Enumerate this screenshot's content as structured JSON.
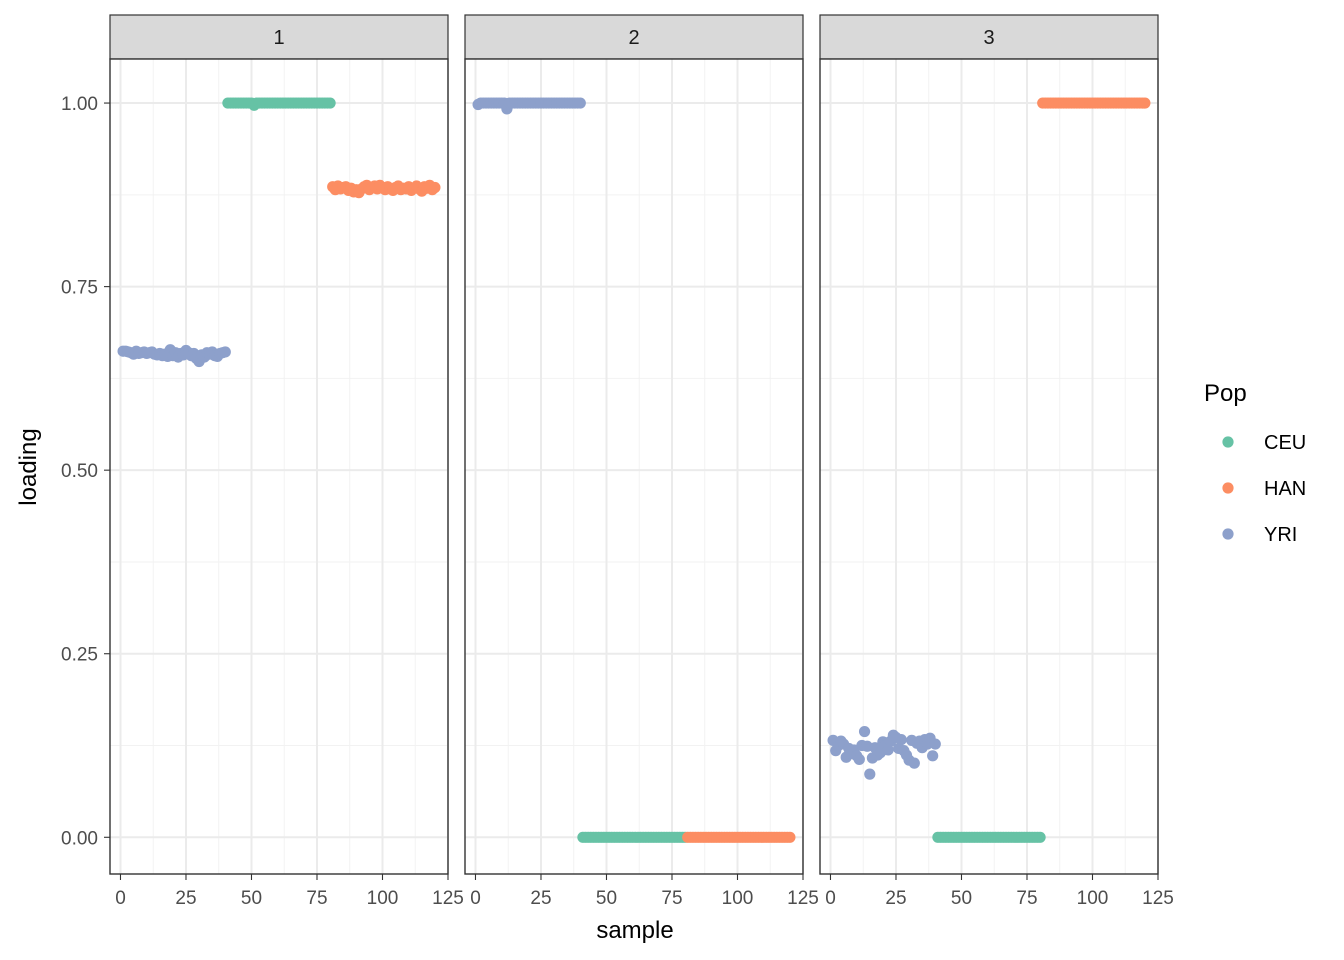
{
  "chart_data": {
    "type": "scatter",
    "xlabel": "sample",
    "ylabel": "loading",
    "xlim": [
      -4,
      125
    ],
    "ylim": [
      -0.05,
      1.06
    ],
    "x_ticks": [
      0,
      25,
      50,
      75,
      100,
      125
    ],
    "x_tick_labels": [
      "0",
      "25",
      "50",
      "75",
      "100",
      "125"
    ],
    "y_ticks": [
      0,
      0.25,
      0.5,
      0.75,
      1
    ],
    "y_tick_labels": [
      "0.00",
      "0.25",
      "0.50",
      "0.75",
      "1.00"
    ],
    "grid": true,
    "legend": {
      "title": "Pop",
      "position": "right",
      "entries": [
        {
          "label": "CEU",
          "color": "#66C2A5"
        },
        {
          "label": "HAN",
          "color": "#FC8D62"
        },
        {
          "label": "YRI",
          "color": "#8DA0CB"
        }
      ]
    },
    "panels": [
      {
        "label": "1",
        "series": [
          {
            "name": "YRI",
            "x_range": [
              1,
              40
            ],
            "values": [
              0.662,
              0.662,
              0.661,
              0.66,
              0.658,
              0.662,
              0.659,
              0.66,
              0.661,
              0.659,
              0.66,
              0.661,
              0.658,
              0.657,
              0.659,
              0.656,
              0.658,
              0.655,
              0.664,
              0.656,
              0.66,
              0.654,
              0.659,
              0.657,
              0.663,
              0.66,
              0.656,
              0.659,
              0.652,
              0.648,
              0.657,
              0.654,
              0.66,
              0.658,
              0.661,
              0.656,
              0.655,
              0.659,
              0.66,
              0.661
            ]
          },
          {
            "name": "CEU",
            "x_range": [
              41,
              80
            ],
            "values": [
              1.0,
              1.0,
              1.0,
              1.0,
              1.0,
              1.0,
              1.0,
              1.0,
              1.0,
              1.0,
              0.997,
              1.0,
              1.0,
              1.0,
              1.0,
              1.0,
              1.0,
              1.0,
              1.0,
              1.0,
              1.0,
              1.0,
              1.0,
              1.0,
              1.0,
              1.0,
              1.0,
              1.0,
              1.0,
              1.0,
              1.0,
              1.0,
              1.0,
              1.0,
              1.0,
              1.0,
              1.0,
              1.0,
              1.0,
              1.0
            ]
          },
          {
            "name": "HAN",
            "x_range": [
              81,
              120
            ],
            "values": [
              0.886,
              0.882,
              0.887,
              0.883,
              0.885,
              0.886,
              0.881,
              0.884,
              0.879,
              0.882,
              0.878,
              0.883,
              0.886,
              0.888,
              0.882,
              0.885,
              0.887,
              0.883,
              0.888,
              0.884,
              0.882,
              0.886,
              0.883,
              0.881,
              0.885,
              0.887,
              0.882,
              0.884,
              0.883,
              0.886,
              0.881,
              0.884,
              0.887,
              0.883,
              0.88,
              0.886,
              0.884,
              0.888,
              0.882,
              0.885
            ]
          }
        ]
      },
      {
        "label": "2",
        "series": [
          {
            "name": "YRI",
            "x_range": [
              1,
              40
            ],
            "values": [
              0.998,
              1.0,
              1.0,
              1.0,
              1.0,
              1.0,
              1.0,
              1.0,
              1.0,
              1.0,
              1.0,
              0.992,
              1.0,
              1.0,
              1.0,
              1.0,
              1.0,
              1.0,
              1.0,
              1.0,
              1.0,
              1.0,
              1.0,
              1.0,
              1.0,
              1.0,
              1.0,
              1.0,
              1.0,
              1.0,
              1.0,
              1.0,
              1.0,
              1.0,
              1.0,
              1.0,
              1.0,
              1.0,
              1.0,
              1.0
            ]
          },
          {
            "name": "CEU",
            "x_range": [
              41,
              80
            ],
            "values": [
              0,
              0,
              0,
              0,
              0,
              0,
              0,
              0,
              0,
              0,
              0,
              0,
              0,
              0,
              0,
              0,
              0,
              0,
              0,
              0,
              0,
              0,
              0,
              0,
              0,
              0,
              0,
              0,
              0,
              0,
              0,
              0,
              0,
              0,
              0,
              0,
              0,
              0,
              0,
              0
            ]
          },
          {
            "name": "HAN",
            "x_range": [
              81,
              120
            ],
            "values": [
              0,
              0,
              0,
              0,
              0,
              0,
              0,
              0,
              0,
              0,
              0,
              0,
              0,
              0,
              0,
              0,
              0,
              0,
              0,
              0,
              0,
              0,
              0,
              0,
              0,
              0,
              0,
              0,
              0,
              0,
              0,
              0,
              0,
              0,
              0,
              0,
              0,
              0,
              0,
              0
            ]
          }
        ]
      },
      {
        "label": "3",
        "series": [
          {
            "name": "YRI",
            "x_range": [
              1,
              40
            ],
            "values": [
              0.132,
              0.118,
              0.125,
              0.131,
              0.127,
              0.109,
              0.121,
              0.114,
              0.119,
              0.111,
              0.106,
              0.125,
              0.144,
              0.124,
              0.086,
              0.108,
              0.122,
              0.112,
              0.115,
              0.13,
              0.125,
              0.119,
              0.131,
              0.139,
              0.136,
              0.121,
              0.133,
              0.118,
              0.112,
              0.105,
              0.132,
              0.101,
              0.128,
              0.131,
              0.122,
              0.133,
              0.127,
              0.135,
              0.111,
              0.127
            ]
          },
          {
            "name": "CEU",
            "x_range": [
              41,
              80
            ],
            "values": [
              0,
              0,
              0,
              0,
              0,
              0,
              0,
              0,
              0,
              0,
              0,
              0,
              0,
              0,
              0,
              0,
              0,
              0,
              0,
              0,
              0,
              0,
              0,
              0,
              0,
              0,
              0,
              0,
              0,
              0,
              0,
              0,
              0,
              0,
              0,
              0,
              0,
              0,
              0,
              0
            ]
          },
          {
            "name": "HAN",
            "x_range": [
              81,
              120
            ],
            "values": [
              1,
              1,
              1,
              1,
              1,
              1,
              1,
              1,
              1,
              1,
              1,
              1,
              1,
              1,
              1,
              1,
              1,
              1,
              1,
              1,
              1,
              1,
              1,
              1,
              1,
              1,
              1,
              1,
              1,
              1,
              1,
              1,
              1,
              1,
              1,
              1,
              1,
              1,
              1,
              1
            ]
          }
        ]
      }
    ]
  }
}
